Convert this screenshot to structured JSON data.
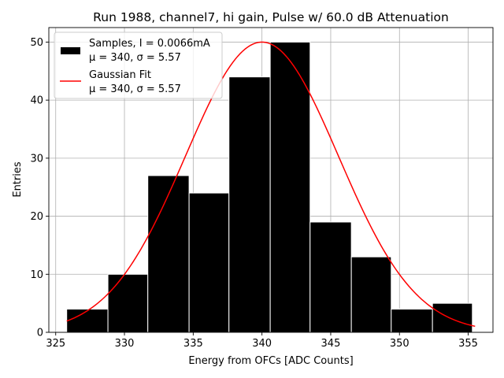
{
  "chart_data": {
    "type": "bar",
    "title": "Run 1988, channel7, hi gain, Pulse w/ 60.0 dB Attenuation",
    "xlabel": "Energy from OFCs [ADC Counts]",
    "ylabel": "Entries",
    "xlim": [
      324.5,
      356.8
    ],
    "ylim": [
      0,
      52.5
    ],
    "xticks": [
      325,
      330,
      335,
      340,
      345,
      350,
      355
    ],
    "yticks": [
      0,
      10,
      20,
      30,
      40,
      50
    ],
    "grid": true,
    "legend_position": "top-left",
    "histogram": {
      "name": "Samples, I = 0.0066mA",
      "stats_label": "μ = 340, σ = 5.57",
      "color": "#000000",
      "edge_color": "#ffffff",
      "bin_edges": [
        325.8,
        328.8,
        331.7,
        334.7,
        337.6,
        340.6,
        343.5,
        346.5,
        349.4,
        352.4,
        355.3
      ],
      "counts": [
        4,
        10,
        27,
        24,
        44,
        50,
        19,
        13,
        4,
        5
      ]
    },
    "fit": {
      "name": "Gaussian Fit",
      "stats_label": "μ = 340, σ = 5.57",
      "color": "#ff0000",
      "mu": 340,
      "sigma": 5.57,
      "amplitude": 50,
      "x_range": [
        325.8,
        355.5
      ]
    }
  }
}
